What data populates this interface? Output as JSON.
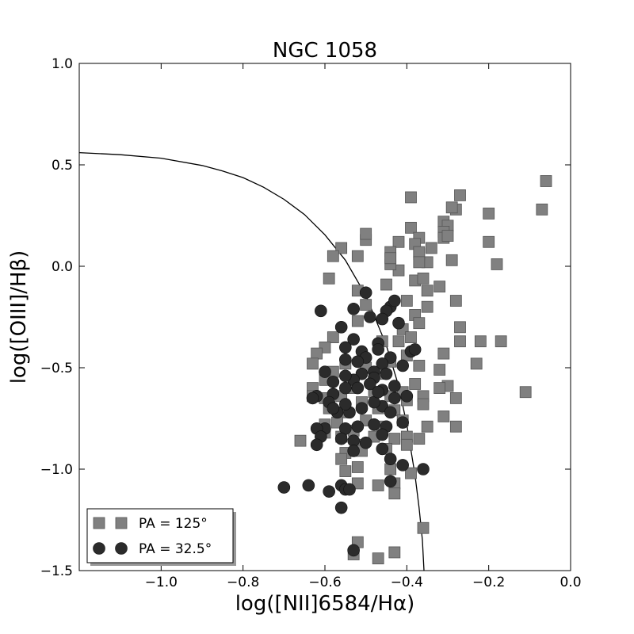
{
  "chart_data": {
    "type": "scatter",
    "title": "NGC 1058",
    "xlabel": "log([NII]6584/Hα)",
    "ylabel": "log([OIII]/Hβ)",
    "xlim": [
      -1.2,
      0.0
    ],
    "ylim": [
      -1.5,
      1.0
    ],
    "grid": false,
    "legend_position": "lower-left",
    "x_ticks": [
      {
        "value": -1.0,
        "label": "−1.0"
      },
      {
        "value": -0.8,
        "label": "−0.8"
      },
      {
        "value": -0.6,
        "label": "−0.6"
      },
      {
        "value": -0.4,
        "label": "−0.4"
      },
      {
        "value": -0.2,
        "label": "−0.2"
      },
      {
        "value": 0.0,
        "label": "0.0"
      }
    ],
    "y_ticks": [
      {
        "value": 1.0,
        "label": "1.0"
      },
      {
        "value": 0.5,
        "label": "0.5"
      },
      {
        "value": 0.0,
        "label": "0.0"
      },
      {
        "value": -0.5,
        "label": "−0.5"
      },
      {
        "value": -1.0,
        "label": "−1.0"
      },
      {
        "value": -1.5,
        "label": "−1.5"
      }
    ],
    "curve": {
      "kind": "demarcation",
      "color": "#000000",
      "points": [
        [
          -1.2,
          0.56
        ],
        [
          -1.1,
          0.55
        ],
        [
          -1.0,
          0.533
        ],
        [
          -0.9,
          0.497
        ],
        [
          -0.85,
          0.47
        ],
        [
          -0.8,
          0.437
        ],
        [
          -0.75,
          0.39
        ],
        [
          -0.7,
          0.33
        ],
        [
          -0.65,
          0.255
        ],
        [
          -0.6,
          0.155
        ],
        [
          -0.55,
          0.03
        ],
        [
          -0.5,
          -0.145
        ],
        [
          -0.45,
          -0.39
        ],
        [
          -0.42,
          -0.59
        ],
        [
          -0.4,
          -0.78
        ],
        [
          -0.38,
          -1.03
        ],
        [
          -0.37,
          -1.19
        ],
        [
          -0.362,
          -1.35
        ],
        [
          -0.358,
          -1.5
        ]
      ]
    },
    "series": [
      {
        "name": "PA = 125°",
        "marker": "square",
        "color": "#808080",
        "points": [
          [
            -0.06,
            0.42
          ],
          [
            -0.07,
            0.28
          ],
          [
            -0.27,
            0.35
          ],
          [
            -0.39,
            0.34
          ],
          [
            -0.2,
            0.26
          ],
          [
            -0.28,
            0.28
          ],
          [
            -0.29,
            0.29
          ],
          [
            -0.31,
            0.22
          ],
          [
            -0.3,
            0.2
          ],
          [
            -0.31,
            0.17
          ],
          [
            -0.31,
            0.14
          ],
          [
            -0.3,
            0.15
          ],
          [
            -0.2,
            0.12
          ],
          [
            -0.18,
            0.01
          ],
          [
            -0.29,
            0.03
          ],
          [
            -0.39,
            0.19
          ],
          [
            -0.37,
            0.14
          ],
          [
            -0.34,
            0.09
          ],
          [
            -0.38,
            0.11
          ],
          [
            -0.42,
            0.12
          ],
          [
            -0.44,
            0.07
          ],
          [
            -0.5,
            0.13
          ],
          [
            -0.5,
            0.16
          ],
          [
            -0.52,
            0.05
          ],
          [
            -0.56,
            0.09
          ],
          [
            -0.58,
            0.05
          ],
          [
            -0.35,
            0.02
          ],
          [
            -0.37,
            0.06
          ],
          [
            -0.37,
            0.07
          ],
          [
            -0.37,
            0.02
          ],
          [
            -0.42,
            -0.02
          ],
          [
            -0.44,
            0.01
          ],
          [
            -0.44,
            0.04
          ],
          [
            -0.38,
            -0.07
          ],
          [
            -0.36,
            -0.06
          ],
          [
            -0.59,
            -0.06
          ],
          [
            -0.32,
            -0.1
          ],
          [
            -0.35,
            -0.12
          ],
          [
            -0.45,
            -0.09
          ],
          [
            -0.52,
            -0.12
          ],
          [
            -0.28,
            -0.17
          ],
          [
            -0.35,
            -0.2
          ],
          [
            -0.4,
            -0.17
          ],
          [
            -0.38,
            -0.24
          ],
          [
            -0.5,
            -0.19
          ],
          [
            -0.37,
            -0.28
          ],
          [
            -0.41,
            -0.31
          ],
          [
            -0.27,
            -0.3
          ],
          [
            -0.27,
            -0.37
          ],
          [
            -0.17,
            -0.37
          ],
          [
            -0.22,
            -0.37
          ],
          [
            -0.31,
            -0.43
          ],
          [
            -0.39,
            -0.35
          ],
          [
            -0.42,
            -0.37
          ],
          [
            -0.46,
            -0.37
          ],
          [
            -0.52,
            -0.27
          ],
          [
            -0.58,
            -0.35
          ],
          [
            -0.6,
            -0.4
          ],
          [
            -0.62,
            -0.43
          ],
          [
            -0.63,
            -0.48
          ],
          [
            -0.23,
            -0.48
          ],
          [
            -0.32,
            -0.51
          ],
          [
            -0.37,
            -0.49
          ],
          [
            -0.4,
            -0.44
          ],
          [
            -0.44,
            -0.47
          ],
          [
            -0.47,
            -0.53
          ],
          [
            -0.5,
            -0.5
          ],
          [
            -0.55,
            -0.48
          ],
          [
            -0.58,
            -0.52
          ],
          [
            -0.6,
            -0.56
          ],
          [
            -0.63,
            -0.6
          ],
          [
            -0.63,
            -0.64
          ],
          [
            -0.11,
            -0.62
          ],
          [
            -0.3,
            -0.59
          ],
          [
            -0.32,
            -0.6
          ],
          [
            -0.36,
            -0.64
          ],
          [
            -0.38,
            -0.58
          ],
          [
            -0.41,
            -0.62
          ],
          [
            -0.44,
            -0.64
          ],
          [
            -0.48,
            -0.62
          ],
          [
            -0.53,
            -0.6
          ],
          [
            -0.56,
            -0.64
          ],
          [
            -0.6,
            -0.65
          ],
          [
            -0.28,
            -0.65
          ],
          [
            -0.36,
            -0.68
          ],
          [
            -0.4,
            -0.66
          ],
          [
            -0.43,
            -0.71
          ],
          [
            -0.47,
            -0.7
          ],
          [
            -0.51,
            -0.67
          ],
          [
            -0.55,
            -0.72
          ],
          [
            -0.59,
            -0.7
          ],
          [
            -0.31,
            -0.74
          ],
          [
            -0.35,
            -0.79
          ],
          [
            -0.41,
            -0.76
          ],
          [
            -0.46,
            -0.79
          ],
          [
            -0.5,
            -0.76
          ],
          [
            -0.53,
            -0.81
          ],
          [
            -0.57,
            -0.77
          ],
          [
            -0.6,
            -0.78
          ],
          [
            -0.6,
            -0.82
          ],
          [
            -0.28,
            -0.79
          ],
          [
            -0.37,
            -0.85
          ],
          [
            -0.4,
            -0.84
          ],
          [
            -0.43,
            -0.85
          ],
          [
            -0.48,
            -0.84
          ],
          [
            -0.52,
            -0.88
          ],
          [
            -0.56,
            -0.84
          ],
          [
            -0.66,
            -0.86
          ],
          [
            -0.4,
            -0.88
          ],
          [
            -0.45,
            -0.9
          ],
          [
            -0.51,
            -0.91
          ],
          [
            -0.55,
            -0.92
          ],
          [
            -0.56,
            -0.95
          ],
          [
            -0.52,
            -0.99
          ],
          [
            -0.55,
            -1.01
          ],
          [
            -0.44,
            -1.0
          ],
          [
            -0.39,
            -1.02
          ],
          [
            -0.43,
            -1.07
          ],
          [
            -0.47,
            -1.08
          ],
          [
            -0.52,
            -1.07
          ],
          [
            -0.43,
            -1.12
          ],
          [
            -0.36,
            -1.29
          ],
          [
            -0.52,
            -1.36
          ],
          [
            -0.53,
            -1.42
          ],
          [
            -0.43,
            -1.41
          ],
          [
            -0.47,
            -1.44
          ]
        ]
      },
      {
        "name": "PA = 32.5°",
        "marker": "circle",
        "color": "#2b2b2b",
        "points": [
          [
            -0.5,
            -0.13
          ],
          [
            -0.61,
            -0.22
          ],
          [
            -0.44,
            -0.2
          ],
          [
            -0.43,
            -0.17
          ],
          [
            -0.45,
            -0.22
          ],
          [
            -0.53,
            -0.21
          ],
          [
            -0.46,
            -0.26
          ],
          [
            -0.49,
            -0.25
          ],
          [
            -0.42,
            -0.28
          ],
          [
            -0.56,
            -0.3
          ],
          [
            -0.53,
            -0.36
          ],
          [
            -0.47,
            -0.38
          ],
          [
            -0.55,
            -0.4
          ],
          [
            -0.51,
            -0.42
          ],
          [
            -0.47,
            -0.41
          ],
          [
            -0.39,
            -0.42
          ],
          [
            -0.38,
            -0.41
          ],
          [
            -0.44,
            -0.45
          ],
          [
            -0.46,
            -0.48
          ],
          [
            -0.48,
            -0.52
          ],
          [
            -0.5,
            -0.45
          ],
          [
            -0.52,
            -0.47
          ],
          [
            -0.55,
            -0.46
          ],
          [
            -0.6,
            -0.52
          ],
          [
            -0.41,
            -0.49
          ],
          [
            -0.45,
            -0.53
          ],
          [
            -0.48,
            -0.55
          ],
          [
            -0.51,
            -0.53
          ],
          [
            -0.53,
            -0.56
          ],
          [
            -0.55,
            -0.54
          ],
          [
            -0.58,
            -0.57
          ],
          [
            -0.43,
            -0.59
          ],
          [
            -0.46,
            -0.61
          ],
          [
            -0.49,
            -0.58
          ],
          [
            -0.52,
            -0.6
          ],
          [
            -0.55,
            -0.6
          ],
          [
            -0.58,
            -0.63
          ],
          [
            -0.59,
            -0.67
          ],
          [
            -0.62,
            -0.64
          ],
          [
            -0.63,
            -0.65
          ],
          [
            -0.4,
            -0.64
          ],
          [
            -0.43,
            -0.65
          ],
          [
            -0.46,
            -0.69
          ],
          [
            -0.48,
            -0.67
          ],
          [
            -0.51,
            -0.7
          ],
          [
            -0.54,
            -0.72
          ],
          [
            -0.55,
            -0.68
          ],
          [
            -0.57,
            -0.72
          ],
          [
            -0.44,
            -0.72
          ],
          [
            -0.41,
            -0.77
          ],
          [
            -0.45,
            -0.79
          ],
          [
            -0.48,
            -0.78
          ],
          [
            -0.52,
            -0.79
          ],
          [
            -0.55,
            -0.8
          ],
          [
            -0.6,
            -0.8
          ],
          [
            -0.62,
            -0.8
          ],
          [
            -0.61,
            -0.84
          ],
          [
            -0.46,
            -0.83
          ],
          [
            -0.5,
            -0.87
          ],
          [
            -0.53,
            -0.86
          ],
          [
            -0.56,
            -0.85
          ],
          [
            -0.62,
            -0.88
          ],
          [
            -0.46,
            -0.9
          ],
          [
            -0.53,
            -0.91
          ],
          [
            -0.44,
            -0.95
          ],
          [
            -0.41,
            -0.98
          ],
          [
            -0.36,
            -1.0
          ],
          [
            -0.7,
            -1.09
          ],
          [
            -0.64,
            -1.08
          ],
          [
            -0.56,
            -1.08
          ],
          [
            -0.59,
            -1.11
          ],
          [
            -0.55,
            -1.1
          ],
          [
            -0.54,
            -1.1
          ],
          [
            -0.44,
            -1.06
          ],
          [
            -0.56,
            -1.19
          ],
          [
            -0.53,
            -1.4
          ],
          [
            -0.58,
            -0.7
          ],
          [
            -0.47,
            -0.62
          ]
        ]
      }
    ]
  }
}
